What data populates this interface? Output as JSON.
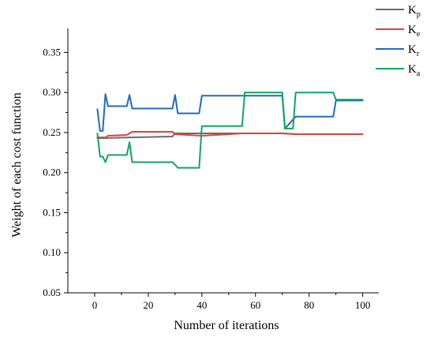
{
  "chart_data": {
    "type": "line",
    "title": "",
    "xlabel": "Number of iterations",
    "ylabel": "Weight of each cost function",
    "xlim": [
      -10,
      106
    ],
    "ylim": [
      0.05,
      0.38
    ],
    "xticks": [
      0,
      20,
      40,
      60,
      80,
      100
    ],
    "xtick_labels": [
      "0",
      "20",
      "40",
      "60",
      "80",
      "100"
    ],
    "yticks": [
      0.05,
      0.1,
      0.15,
      0.2,
      0.25,
      0.3,
      0.35
    ],
    "ytick_labels": [
      "0.05",
      "0.10",
      "0.15",
      "0.20",
      "0.25",
      "0.30",
      "0.35"
    ],
    "grid": false,
    "legend_position": "top-right",
    "series": [
      {
        "name": "Kp",
        "label_main": "K",
        "label_sub": "p",
        "color": "#6b6b6b",
        "x": [
          1,
          2,
          13,
          29,
          30,
          31,
          40,
          55,
          70,
          75,
          90,
          100
        ],
        "y": [
          0.243,
          0.243,
          0.244,
          0.245,
          0.249,
          0.249,
          0.249,
          0.249,
          0.249,
          0.248,
          0.248,
          0.248
        ]
      },
      {
        "name": "Ke",
        "label_main": "K",
        "label_sub": "e",
        "color": "#e0403a",
        "x": [
          1,
          2,
          4,
          5,
          12,
          14,
          29,
          30,
          40,
          55,
          70,
          75,
          90,
          100
        ],
        "y": [
          0.244,
          0.244,
          0.244,
          0.246,
          0.247,
          0.251,
          0.251,
          0.248,
          0.246,
          0.249,
          0.249,
          0.248,
          0.248,
          0.248
        ]
      },
      {
        "name": "Kr",
        "label_main": "K",
        "label_sub": "r",
        "color": "#1f6bc4",
        "x": [
          1,
          2,
          3,
          4,
          5,
          12,
          13,
          14,
          29,
          30,
          31,
          39,
          40,
          55,
          70,
          71,
          75,
          89,
          90,
          100
        ],
        "y": [
          0.279,
          0.252,
          0.252,
          0.298,
          0.283,
          0.283,
          0.297,
          0.28,
          0.28,
          0.297,
          0.274,
          0.274,
          0.296,
          0.296,
          0.296,
          0.255,
          0.27,
          0.27,
          0.29,
          0.29
        ]
      },
      {
        "name": "Ka",
        "label_main": "K",
        "label_sub": "a",
        "color": "#0fa65c",
        "x": [
          1,
          2,
          3,
          4,
          5,
          12,
          13,
          14,
          29,
          30,
          31,
          39,
          40,
          55,
          56,
          70,
          71,
          74,
          75,
          89,
          90,
          100
        ],
        "y": [
          0.249,
          0.22,
          0.22,
          0.213,
          0.222,
          0.222,
          0.238,
          0.213,
          0.213,
          0.21,
          0.206,
          0.206,
          0.258,
          0.258,
          0.3,
          0.3,
          0.255,
          0.255,
          0.3,
          0.3,
          0.291,
          0.291
        ]
      }
    ]
  }
}
